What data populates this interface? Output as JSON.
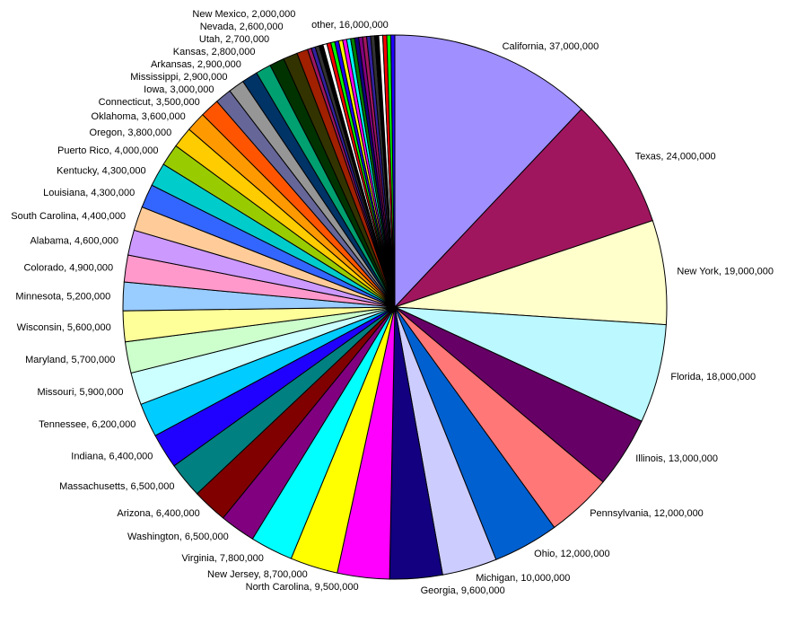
{
  "chart_data": {
    "type": "pie",
    "title": "",
    "start": "top",
    "direction": "clockwise",
    "slices": [
      {
        "label": "California",
        "value": 37000000,
        "color": "#9f8fff"
      },
      {
        "label": "Texas",
        "value": 24000000,
        "color": "#a0165e"
      },
      {
        "label": "New York",
        "value": 19000000,
        "color": "#ffffcc"
      },
      {
        "label": "Florida",
        "value": 18000000,
        "color": "#bbf8ff"
      },
      {
        "label": "Illinois",
        "value": 13000000,
        "color": "#660066"
      },
      {
        "label": "Pennsylvania",
        "value": 12000000,
        "color": "#ff7777"
      },
      {
        "label": "Ohio",
        "value": 12000000,
        "color": "#0060d0"
      },
      {
        "label": "Michigan",
        "value": 10000000,
        "color": "#ccccff"
      },
      {
        "label": "Georgia",
        "value": 9600000,
        "color": "#120080"
      },
      {
        "label": "North Carolina",
        "value": 9500000,
        "color": "#ff00ff"
      },
      {
        "label": "New Jersey",
        "value": 8700000,
        "color": "#ffff00"
      },
      {
        "label": "Virginia",
        "value": 7800000,
        "color": "#00ffff"
      },
      {
        "label": "Washington",
        "value": 6500000,
        "color": "#800080"
      },
      {
        "label": "Arizona",
        "value": 6400000,
        "color": "#800000"
      },
      {
        "label": "Massachusetts",
        "value": 6500000,
        "color": "#008080"
      },
      {
        "label": "Indiana",
        "value": 6400000,
        "color": "#2000ff"
      },
      {
        "label": "Tennessee",
        "value": 6200000,
        "color": "#00ccff"
      },
      {
        "label": "Missouri",
        "value": 5900000,
        "color": "#ccffff"
      },
      {
        "label": "Maryland",
        "value": 5700000,
        "color": "#ccffcc"
      },
      {
        "label": "Wisconsin",
        "value": 5600000,
        "color": "#ffff99"
      },
      {
        "label": "Minnesota",
        "value": 5200000,
        "color": "#99ccff"
      },
      {
        "label": "Colorado",
        "value": 4900000,
        "color": "#ff99cc"
      },
      {
        "label": "Alabama",
        "value": 4600000,
        "color": "#cc99ff"
      },
      {
        "label": "South Carolina",
        "value": 4400000,
        "color": "#ffcc99"
      },
      {
        "label": "Louisiana",
        "value": 4300000,
        "color": "#3366ff"
      },
      {
        "label": "Kentucky",
        "value": 4300000,
        "color": "#00cccc"
      },
      {
        "label": "Puerto Rico",
        "value": 4000000,
        "color": "#99cc00"
      },
      {
        "label": "Oregon",
        "value": 3800000,
        "color": "#ffcc00"
      },
      {
        "label": "Oklahoma",
        "value": 3600000,
        "color": "#ff9900"
      },
      {
        "label": "Connecticut",
        "value": 3500000,
        "color": "#ff5500"
      },
      {
        "label": "Iowa",
        "value": 3000000,
        "color": "#666699"
      },
      {
        "label": "Mississippi",
        "value": 2900000,
        "color": "#969696"
      },
      {
        "label": "Arkansas",
        "value": 2900000,
        "color": "#003366"
      },
      {
        "label": "Kansas",
        "value": 2800000,
        "color": "#00a070"
      },
      {
        "label": "Utah",
        "value": 2700000,
        "color": "#003300"
      },
      {
        "label": "Nevada",
        "value": 2600000,
        "color": "#333300"
      },
      {
        "label": "New Mexico",
        "value": 2000000,
        "color": "#a02000"
      },
      {
        "label": "other",
        "value": 16000000,
        "color": "#993366"
      }
    ],
    "other_stripe_colors": [
      "#a0165e",
      "#3322a0",
      "#333333",
      "#000000",
      "#ffffff",
      "#ff0000",
      "#00ff00",
      "#2000ff",
      "#ffff00",
      "#ff00ff",
      "#00ffff",
      "#008000",
      "#120080",
      "#800080"
    ],
    "label_format": "{label}, {value}"
  }
}
